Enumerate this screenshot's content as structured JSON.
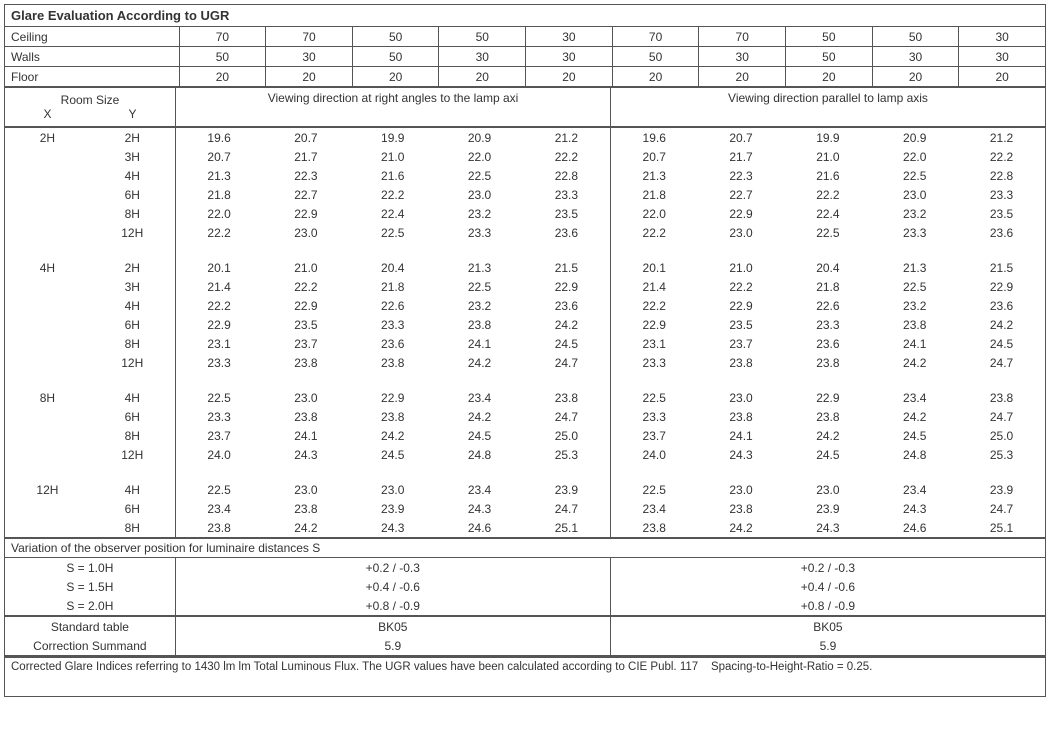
{
  "title": "Glare Evaluation According to UGR",
  "header": {
    "rows": [
      {
        "label": "Ceiling",
        "vals": [
          "70",
          "70",
          "50",
          "50",
          "30",
          "70",
          "70",
          "50",
          "50",
          "30"
        ]
      },
      {
        "label": "Walls",
        "vals": [
          "50",
          "30",
          "50",
          "30",
          "30",
          "50",
          "30",
          "50",
          "30",
          "30"
        ]
      },
      {
        "label": "Floor",
        "vals": [
          "20",
          "20",
          "20",
          "20",
          "20",
          "20",
          "20",
          "20",
          "20",
          "20"
        ]
      }
    ]
  },
  "roomsize_label": "Room Size",
  "roomsize_x": "X",
  "roomsize_y": "Y",
  "view_left": "Viewing direction at right angles to the lamp axi",
  "view_right": "Viewing direction parallel to lamp axis",
  "groups": [
    {
      "x": "2H",
      "rows": [
        {
          "y": "2H",
          "l": [
            "19.6",
            "20.7",
            "19.9",
            "20.9",
            "21.2"
          ],
          "r": [
            "19.6",
            "20.7",
            "19.9",
            "20.9",
            "21.2"
          ]
        },
        {
          "y": "3H",
          "l": [
            "20.7",
            "21.7",
            "21.0",
            "22.0",
            "22.2"
          ],
          "r": [
            "20.7",
            "21.7",
            "21.0",
            "22.0",
            "22.2"
          ]
        },
        {
          "y": "4H",
          "l": [
            "21.3",
            "22.3",
            "21.6",
            "22.5",
            "22.8"
          ],
          "r": [
            "21.3",
            "22.3",
            "21.6",
            "22.5",
            "22.8"
          ]
        },
        {
          "y": "6H",
          "l": [
            "21.8",
            "22.7",
            "22.2",
            "23.0",
            "23.3"
          ],
          "r": [
            "21.8",
            "22.7",
            "22.2",
            "23.0",
            "23.3"
          ]
        },
        {
          "y": "8H",
          "l": [
            "22.0",
            "22.9",
            "22.4",
            "23.2",
            "23.5"
          ],
          "r": [
            "22.0",
            "22.9",
            "22.4",
            "23.2",
            "23.5"
          ]
        },
        {
          "y": "12H",
          "l": [
            "22.2",
            "23.0",
            "22.5",
            "23.3",
            "23.6"
          ],
          "r": [
            "22.2",
            "23.0",
            "22.5",
            "23.3",
            "23.6"
          ]
        }
      ]
    },
    {
      "x": "4H",
      "rows": [
        {
          "y": "2H",
          "l": [
            "20.1",
            "21.0",
            "20.4",
            "21.3",
            "21.5"
          ],
          "r": [
            "20.1",
            "21.0",
            "20.4",
            "21.3",
            "21.5"
          ]
        },
        {
          "y": "3H",
          "l": [
            "21.4",
            "22.2",
            "21.8",
            "22.5",
            "22.9"
          ],
          "r": [
            "21.4",
            "22.2",
            "21.8",
            "22.5",
            "22.9"
          ]
        },
        {
          "y": "4H",
          "l": [
            "22.2",
            "22.9",
            "22.6",
            "23.2",
            "23.6"
          ],
          "r": [
            "22.2",
            "22.9",
            "22.6",
            "23.2",
            "23.6"
          ]
        },
        {
          "y": "6H",
          "l": [
            "22.9",
            "23.5",
            "23.3",
            "23.8",
            "24.2"
          ],
          "r": [
            "22.9",
            "23.5",
            "23.3",
            "23.8",
            "24.2"
          ]
        },
        {
          "y": "8H",
          "l": [
            "23.1",
            "23.7",
            "23.6",
            "24.1",
            "24.5"
          ],
          "r": [
            "23.1",
            "23.7",
            "23.6",
            "24.1",
            "24.5"
          ]
        },
        {
          "y": "12H",
          "l": [
            "23.3",
            "23.8",
            "23.8",
            "24.2",
            "24.7"
          ],
          "r": [
            "23.3",
            "23.8",
            "23.8",
            "24.2",
            "24.7"
          ]
        }
      ]
    },
    {
      "x": "8H",
      "rows": [
        {
          "y": "4H",
          "l": [
            "22.5",
            "23.0",
            "22.9",
            "23.4",
            "23.8"
          ],
          "r": [
            "22.5",
            "23.0",
            "22.9",
            "23.4",
            "23.8"
          ]
        },
        {
          "y": "6H",
          "l": [
            "23.3",
            "23.8",
            "23.8",
            "24.2",
            "24.7"
          ],
          "r": [
            "23.3",
            "23.8",
            "23.8",
            "24.2",
            "24.7"
          ]
        },
        {
          "y": "8H",
          "l": [
            "23.7",
            "24.1",
            "24.2",
            "24.5",
            "25.0"
          ],
          "r": [
            "23.7",
            "24.1",
            "24.2",
            "24.5",
            "25.0"
          ]
        },
        {
          "y": "12H",
          "l": [
            "24.0",
            "24.3",
            "24.5",
            "24.8",
            "25.3"
          ],
          "r": [
            "24.0",
            "24.3",
            "24.5",
            "24.8",
            "25.3"
          ]
        }
      ]
    },
    {
      "x": "12H",
      "rows": [
        {
          "y": "4H",
          "l": [
            "22.5",
            "23.0",
            "23.0",
            "23.4",
            "23.9"
          ],
          "r": [
            "22.5",
            "23.0",
            "23.0",
            "23.4",
            "23.9"
          ]
        },
        {
          "y": "6H",
          "l": [
            "23.4",
            "23.8",
            "23.9",
            "24.3",
            "24.7"
          ],
          "r": [
            "23.4",
            "23.8",
            "23.9",
            "24.3",
            "24.7"
          ]
        },
        {
          "y": "8H",
          "l": [
            "23.8",
            "24.2",
            "24.3",
            "24.6",
            "25.1"
          ],
          "r": [
            "23.8",
            "24.2",
            "24.3",
            "24.6",
            "25.1"
          ]
        }
      ]
    }
  ],
  "variation_title": "Variation of the observer position for luminaire distances S",
  "variation": [
    {
      "s": "S = 1.0H",
      "l": "+0.2 / -0.3",
      "r": "+0.2 / -0.3"
    },
    {
      "s": "S = 1.5H",
      "l": "+0.4 / -0.6",
      "r": "+0.4 / -0.6"
    },
    {
      "s": "S = 2.0H",
      "l": "+0.8 / -0.9",
      "r": "+0.8 / -0.9"
    }
  ],
  "std_table_label": "Standard table",
  "std_table_l": "BK05",
  "std_table_r": "BK05",
  "corr_label": "Correction Summand",
  "corr_l": "5.9",
  "corr_r": "5.9",
  "footnote": "Corrected Glare Indices referring to 1430 lm lm Total Luminous Flux. The UGR values have been calculated according to CIE Publ. 117    Spacing-to-Height-Ratio = 0.25."
}
